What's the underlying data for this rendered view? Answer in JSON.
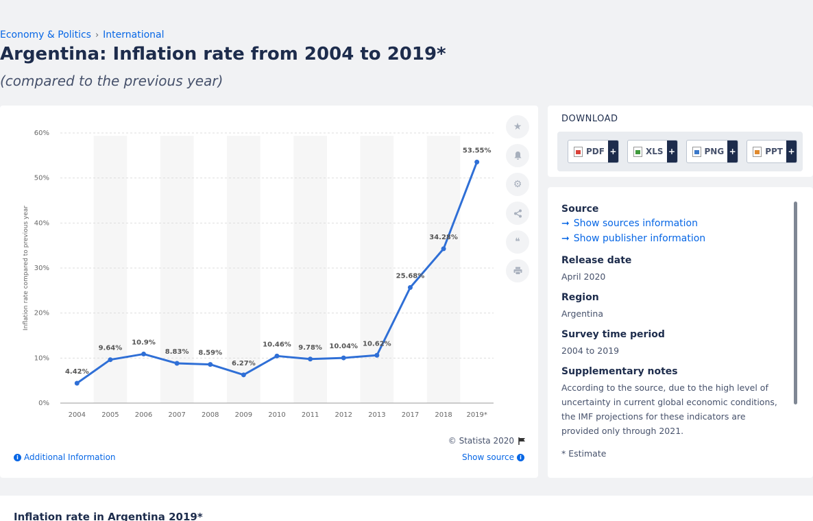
{
  "breadcrumb": {
    "items": [
      "Economy & Politics",
      "International"
    ],
    "separator": "›"
  },
  "title": "Argentina: Inflation rate from 2004 to 2019*",
  "subtitle": "(compared to the previous year)",
  "chart": {
    "copyright": "© Statista 2020",
    "additional_info": "Additional Information",
    "show_source": "Show source"
  },
  "chart_data": {
    "type": "line",
    "categories": [
      "2004",
      "2005",
      "2006",
      "2007",
      "2008",
      "2009",
      "2010",
      "2011",
      "2012",
      "2013",
      "2017",
      "2018",
      "2019*"
    ],
    "values": [
      4.42,
      9.64,
      10.9,
      8.83,
      8.59,
      6.27,
      10.46,
      9.78,
      10.04,
      10.62,
      25.68,
      34.28,
      53.55
    ],
    "data_labels": [
      "4.42%",
      "9.64%",
      "10.9%",
      "8.83%",
      "8.59%",
      "6.27%",
      "10.46%",
      "9.78%",
      "10.04%",
      "10.62%",
      "25.68%",
      "34.28%",
      "53.55%"
    ],
    "ylabel": "Inflation rate compared to previous year",
    "ylim": [
      0,
      60
    ],
    "yticks": [
      "0%",
      "10%",
      "20%",
      "30%",
      "40%",
      "50%",
      "60%"
    ],
    "grid": true,
    "line_color": "#2f6fd6"
  },
  "download": {
    "heading": "DOWNLOAD",
    "buttons": [
      {
        "label": "PDF",
        "icon": "pdf-file-icon",
        "color": "#d9423a"
      },
      {
        "label": "XLS",
        "icon": "xls-file-icon",
        "color": "#3f9a3c"
      },
      {
        "label": "PNG",
        "icon": "png-file-icon",
        "color": "#3a78c9"
      },
      {
        "label": "PPT",
        "icon": "ppt-file-icon",
        "color": "#e08a2e"
      }
    ],
    "plus": "+"
  },
  "info": {
    "source_label": "Source",
    "show_sources": "Show sources information",
    "show_publisher": "Show publisher information",
    "release_label": "Release date",
    "release_value": "April 2020",
    "region_label": "Region",
    "region_value": "Argentina",
    "period_label": "Survey time period",
    "period_value": "2004 to 2019",
    "notes_label": "Supplementary notes",
    "notes_value": "According to the source, due to the high level of uncertainty in current global economic conditions, the IMF projections for these indicators are provided only through 2021.",
    "footnote": "* Estimate"
  },
  "bottom": {
    "title": "Inflation rate in Argentina 2019*"
  }
}
